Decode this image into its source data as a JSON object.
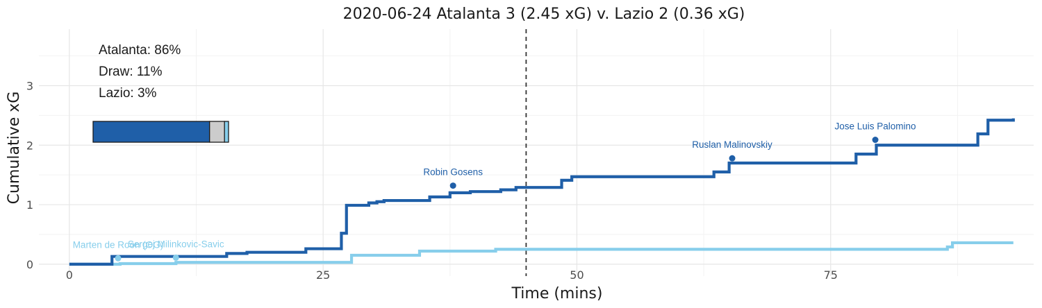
{
  "chart_data": {
    "type": "line",
    "title": "2020-06-24 Atalanta 3 (2.45 xG) v. Lazio 2 (0.36 xG)",
    "xlabel": "Time (mins)",
    "ylabel": "Cumulative xG",
    "xlim": [
      -3,
      95
    ],
    "ylim": [
      -0.2,
      3.95
    ],
    "x_ticks": [
      0,
      25,
      50,
      75
    ],
    "x_minor_ticks": [
      12.5,
      37.5,
      62.5,
      87.5
    ],
    "y_ticks": [
      0,
      1,
      2,
      3
    ],
    "y_minor_ticks": [
      0.5,
      1.5,
      2.5,
      3.5
    ],
    "grid": true,
    "halftime_line": 45,
    "probabilities": [
      {
        "label": "Atalanta: 86%",
        "value": 0.86,
        "color": "#1f5fa8"
      },
      {
        "label": "Draw: 11%",
        "value": 0.11,
        "color": "#cccccc"
      },
      {
        "label": "Lazio: 3%",
        "value": 0.03,
        "color": "#87ceeb"
      }
    ],
    "series": [
      {
        "name": "Atalanta",
        "color": "#1f5fa8",
        "x": [
          0,
          4.2,
          15.5,
          17.5,
          23.3,
          26.8,
          27.3,
          29.5,
          30.3,
          31,
          35.5,
          37.5,
          39.5,
          42.5,
          44,
          48.5,
          49.5,
          63.5,
          65,
          77.5,
          79.5,
          89.5,
          90.5,
          93
        ],
        "y": [
          0,
          0.13,
          0.18,
          0.2,
          0.26,
          0.52,
          0.99,
          1.03,
          1.05,
          1.07,
          1.13,
          1.2,
          1.22,
          1.25,
          1.29,
          1.41,
          1.47,
          1.55,
          1.7,
          1.85,
          2.0,
          2.19,
          2.42,
          2.45
        ]
      },
      {
        "name": "Lazio",
        "color": "#87ceeb",
        "x": [
          0,
          5,
          10.5,
          27.8,
          34.5,
          42,
          86.5,
          87,
          93
        ],
        "y": [
          0,
          0.01,
          0.03,
          0.15,
          0.22,
          0.25,
          0.29,
          0.36,
          0.36
        ]
      }
    ],
    "goals": [
      {
        "player": "Robin Gosens",
        "team": "Atalanta",
        "minute": 37.8,
        "xg": 1.32,
        "color": "#1f5fa8"
      },
      {
        "player": "Ruslan Malinovskiy",
        "team": "Atalanta",
        "minute": 65.3,
        "xg": 1.78,
        "color": "#1f5fa8"
      },
      {
        "player": "Jose Luis Palomino",
        "team": "Atalanta",
        "minute": 79.4,
        "xg": 2.09,
        "color": "#1f5fa8"
      },
      {
        "player": "Marten de Roon (OG)",
        "team": "Lazio",
        "minute": 4.8,
        "xg": 0.1,
        "color": "#87ceeb"
      },
      {
        "player": "Sergej Milinkovic-Savic",
        "team": "Lazio",
        "minute": 10.5,
        "xg": 0.11,
        "color": "#87ceeb"
      }
    ]
  }
}
